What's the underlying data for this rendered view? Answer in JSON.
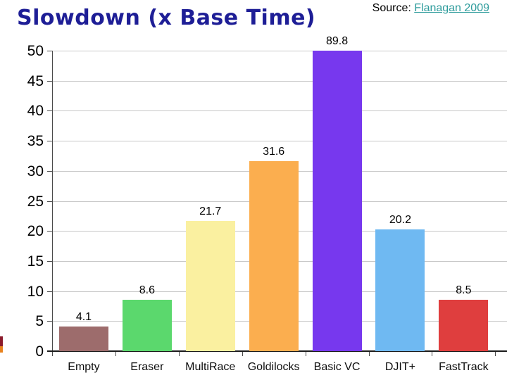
{
  "page": {
    "title": "Slowdown (x Base Time)",
    "title_color": "#1e1e96",
    "source_prefix": "Source:",
    "source_link": "Flanagan 2009",
    "source_link_color": "#2e9c9c"
  },
  "chart_data": {
    "type": "bar",
    "title": "Slowdown (x Base Time)",
    "categories": [
      "Empty",
      "Eraser",
      "MultiRace",
      "Goldilocks",
      "Basic VC",
      "DJIT+",
      "FastTrack"
    ],
    "values": [
      4.1,
      8.6,
      21.7,
      31.6,
      89.8,
      20.2,
      8.5
    ],
    "bar_colors": [
      "#9d6c6c",
      "#5bd86d",
      "#faf0a0",
      "#fbae4f",
      "#7738ee",
      "#6fb9f2",
      "#df3e3e"
    ],
    "xlabel": "",
    "ylabel": "",
    "ylim": [
      0,
      50
    ],
    "ytick_step": 5,
    "grid": true,
    "legend": "none",
    "note": "Basic VC bar (89.8) is clipped at the 50 axis maximum; its value label sits above the plot top"
  },
  "decoration": {
    "left_edge_top_color": "#8b1a2b",
    "left_edge_bottom_color": "#e8821e"
  }
}
